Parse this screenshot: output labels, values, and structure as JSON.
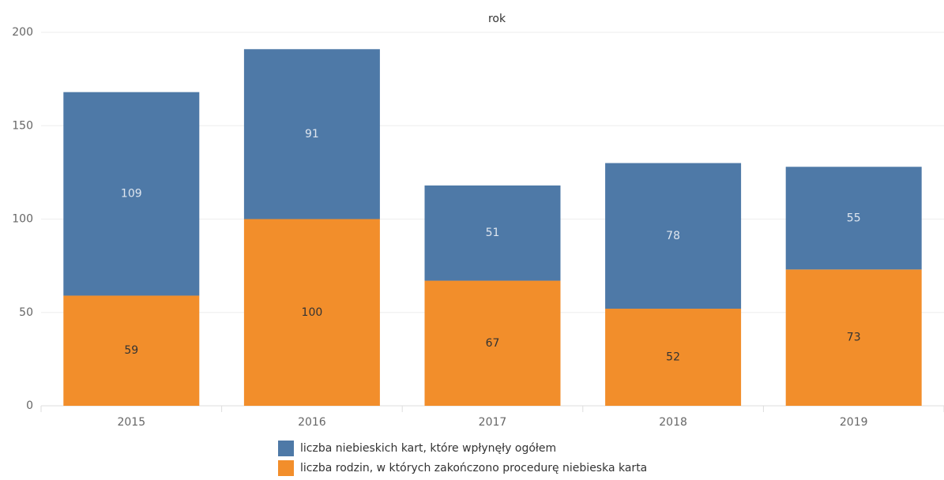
{
  "chart_data": {
    "type": "bar",
    "stacked": true,
    "title": "rok",
    "categories": [
      "2015",
      "2016",
      "2017",
      "2018",
      "2019"
    ],
    "series": [
      {
        "name": "liczba niebieskich kart, które wpłynęły ogółem",
        "color": "#4e79a7",
        "values": [
          109,
          91,
          51,
          78,
          55
        ]
      },
      {
        "name": "liczba rodzin, w których zakończono procedurę niebieska karta",
        "color": "#f28e2b",
        "values": [
          59,
          100,
          67,
          52,
          73
        ]
      }
    ],
    "ylim": [
      0,
      200
    ],
    "yticks": [
      0,
      50,
      100,
      150,
      200
    ],
    "grid": true,
    "legend": "bottom"
  }
}
